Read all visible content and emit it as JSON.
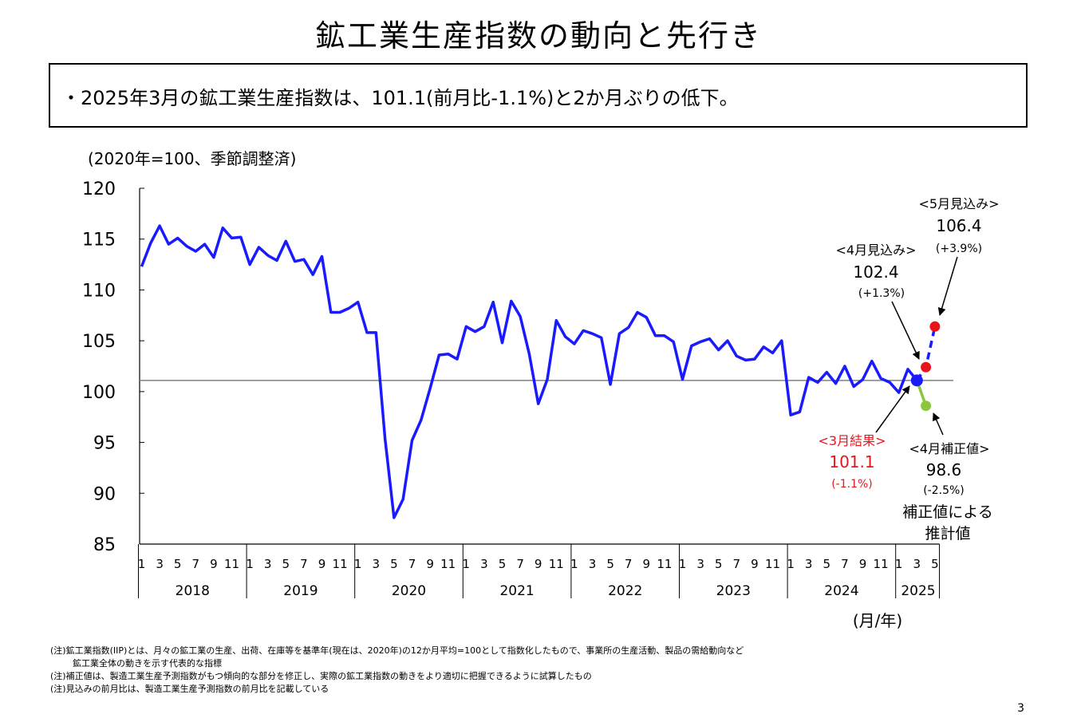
{
  "title": "鉱工業生産指数の動向と先行き",
  "summary": "・2025年3月の鉱工業生産指数は、101.1(前月比-1.1%)と2か月ぶりの低下。",
  "colors": {
    "main_line": "#1a1aff",
    "forecast": "#e8161c",
    "corrected": "#8cc63f",
    "reference": "#808080",
    "result_text": "#e8161c"
  },
  "chart_data": {
    "type": "line",
    "unit_label": "(2020年=100、季節調整済)",
    "x_axis_label": "(月/年)",
    "ylim": [
      85,
      120
    ],
    "y_ticks": [
      120,
      115,
      110,
      105,
      100,
      95,
      90,
      85
    ],
    "x_month_ticks": [
      "1",
      "3",
      "5",
      "7",
      "9",
      "11"
    ],
    "years": [
      "2018",
      "2019",
      "2020",
      "2021",
      "2022",
      "2023",
      "2024",
      "2025"
    ],
    "reference_line": 101.1,
    "series": [
      {
        "key": "actual",
        "start": "2018-01",
        "values": [
          112.3,
          114.6,
          116.3,
          114.5,
          115.1,
          114.3,
          113.8,
          114.5,
          113.2,
          116.1,
          115.1,
          115.2,
          112.5,
          114.2,
          113.4,
          112.9,
          114.8,
          112.8,
          113.0,
          111.5,
          113.3,
          107.8,
          107.8,
          108.2,
          108.8,
          105.8,
          105.8,
          95.4,
          87.6,
          89.4,
          95.2,
          97.2,
          100.3,
          103.6,
          103.7,
          103.2,
          106.4,
          105.9,
          106.4,
          108.8,
          104.8,
          108.9,
          107.4,
          103.7,
          98.8,
          101.2,
          107.0,
          105.4,
          104.7,
          106.0,
          105.7,
          105.3,
          100.7,
          105.7,
          106.3,
          107.8,
          107.3,
          105.5,
          105.5,
          104.9,
          101.2,
          104.5,
          104.9,
          105.2,
          104.1,
          105.0,
          103.5,
          103.1,
          103.2,
          104.4,
          103.8,
          105.0,
          97.7,
          98.0,
          101.4,
          100.9,
          101.9,
          100.8,
          102.5,
          100.5,
          101.2,
          103.0,
          101.3,
          100.9,
          99.9,
          102.2,
          101.1
        ]
      },
      {
        "key": "forecast",
        "start": "2025-03",
        "values": [
          101.1,
          102.4,
          106.4
        ]
      },
      {
        "key": "corrected",
        "start": "2025-03",
        "values": [
          101.1,
          98.6
        ]
      }
    ],
    "annotations": {
      "may_forecast": {
        "label": "<5月見込み>",
        "value": "106.4",
        "change": "(+3.9%)"
      },
      "apr_forecast": {
        "label": "<4月見込み>",
        "value": "102.4",
        "change": "(+1.3%)"
      },
      "mar_result": {
        "label": "<3月結果>",
        "value": "101.1",
        "change": "(-1.1%)"
      },
      "apr_corrected": {
        "label": "<4月補正値>",
        "value": "98.6",
        "change": "(-2.5%)",
        "note_line1": "補正値による",
        "note_line2": "推計値"
      }
    }
  },
  "notes": [
    "(注)鉱工業指数(IIP)とは、月々の鉱工業の生産、出荷、在庫等を基準年(現在は、2020年)の12か月平均=100として指数化したもので、事業所の生産活動、製品の需給動向など",
    "鉱工業全体の動きを示す代表的な指標",
    "(注)補正値は、製造工業生産予測指数がもつ傾向的な部分を修正し、実際の鉱工業指数の動きをより適切に把握できるように試算したもの",
    "(注)見込みの前月比は、製造工業生産予測指数の前月比を記載している"
  ],
  "page_number": "3"
}
